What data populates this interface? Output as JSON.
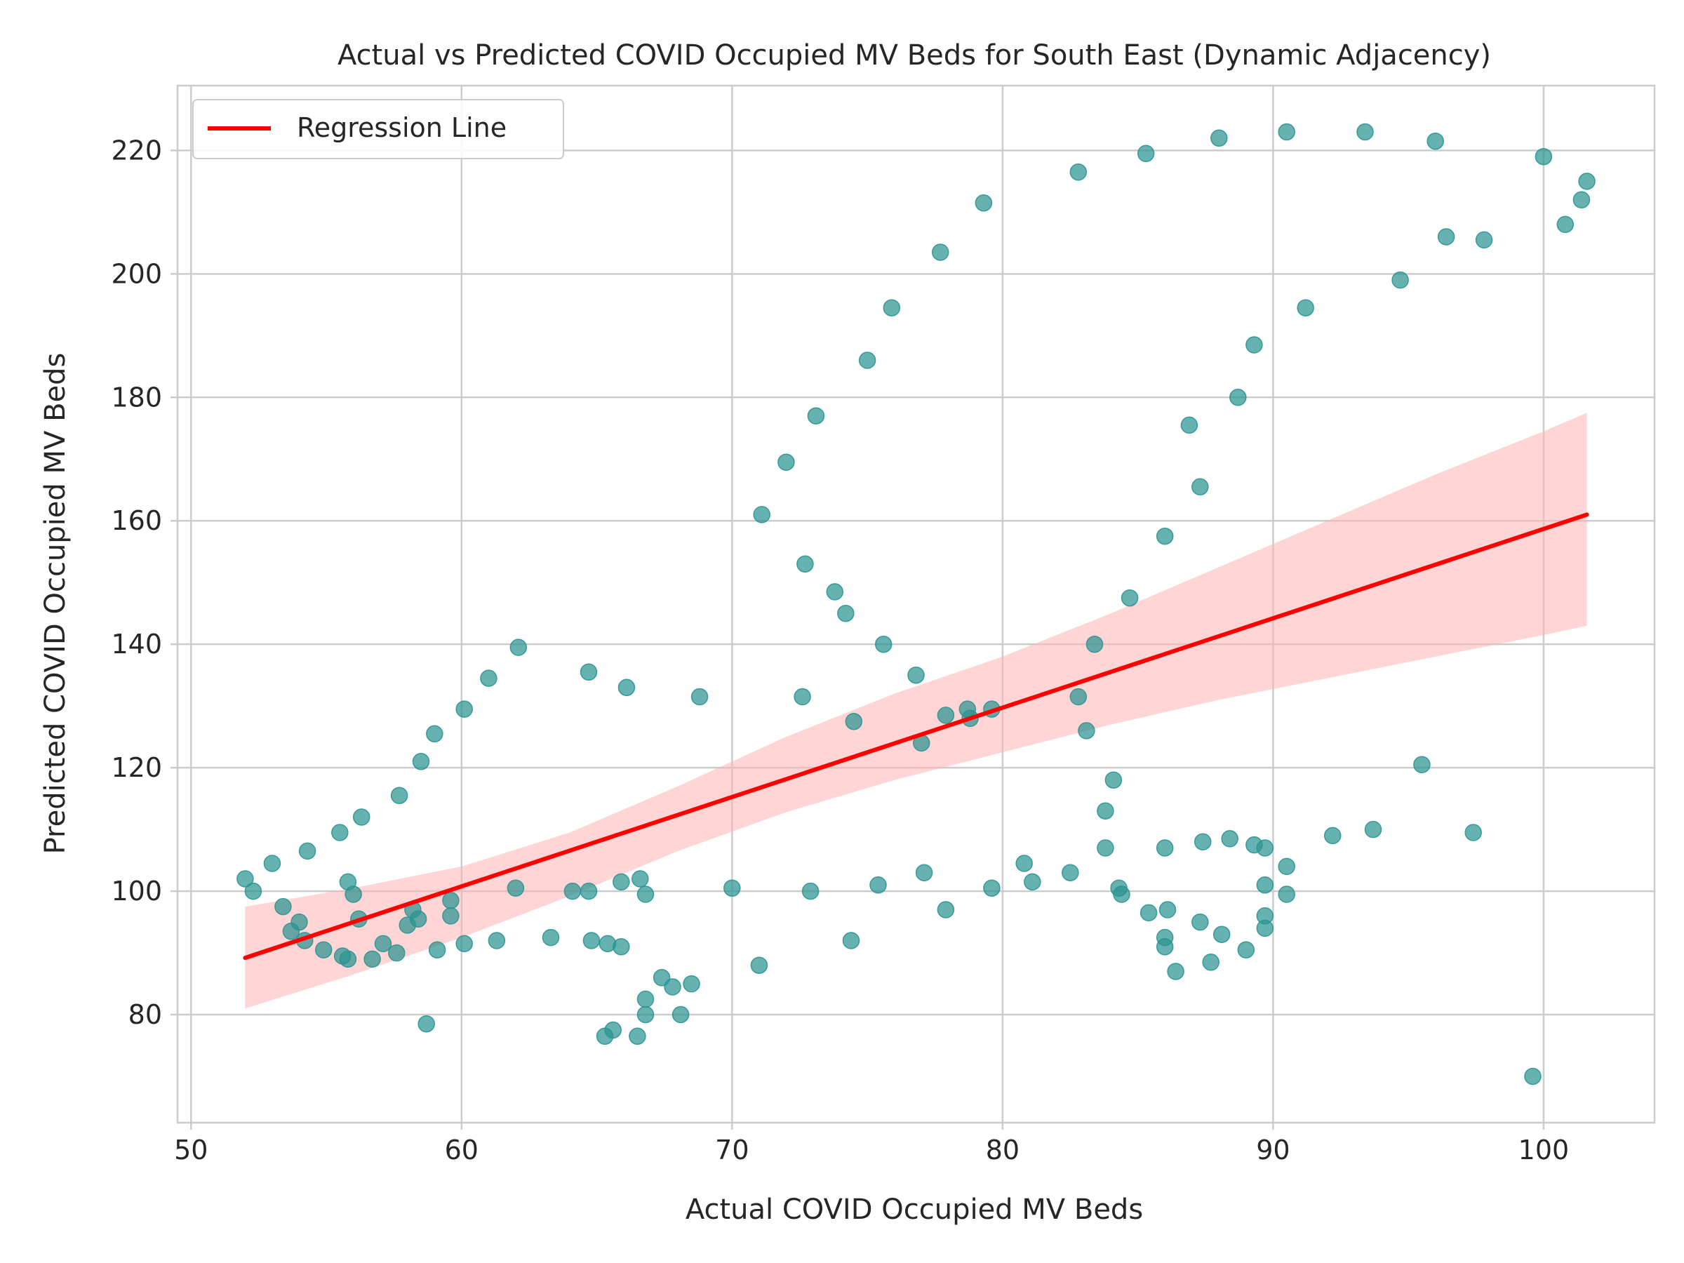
{
  "chart_data": {
    "type": "scatter",
    "title": "Actual vs Predicted COVID Occupied MV Beds for South East (Dynamic Adjacency)",
    "xlabel": "Actual COVID Occupied MV Beds",
    "ylabel": "Predicted COVID Occupied MV Beds",
    "xlim": [
      49.5,
      104.1
    ],
    "ylim": [
      62.5,
      230.5
    ],
    "xticks": [
      50,
      60,
      70,
      80,
      90,
      100
    ],
    "yticks": [
      80,
      100,
      120,
      140,
      160,
      180,
      200,
      220
    ],
    "grid": true,
    "legend": {
      "position": "top-left",
      "entries": [
        {
          "label": "Regression Line",
          "color": "#ff0000"
        }
      ]
    },
    "colors": {
      "points": "#2a9492",
      "regression": "#ff0000",
      "ci_band": "#ffb3b3"
    },
    "points": [
      [
        52,
        102
      ],
      [
        52.3,
        100
      ],
      [
        53,
        104.5
      ],
      [
        53.4,
        97.5
      ],
      [
        53.7,
        93.5
      ],
      [
        54,
        95
      ],
      [
        54.2,
        92
      ],
      [
        54.3,
        106.5
      ],
      [
        54.9,
        90.5
      ],
      [
        55.5,
        109.5
      ],
      [
        55.6,
        89.5
      ],
      [
        55.8,
        101.5
      ],
      [
        55.8,
        89
      ],
      [
        56,
        99.5
      ],
      [
        56.2,
        95.5
      ],
      [
        56.3,
        112
      ],
      [
        56.7,
        89
      ],
      [
        57.1,
        91.5
      ],
      [
        57.6,
        90
      ],
      [
        57.7,
        115.5
      ],
      [
        58,
        94.5
      ],
      [
        58.2,
        97
      ],
      [
        58.4,
        95.5
      ],
      [
        58.5,
        121
      ],
      [
        58.7,
        78.5
      ],
      [
        59,
        125.5
      ],
      [
        59.1,
        90.5
      ],
      [
        59.6,
        98.5
      ],
      [
        59.6,
        96
      ],
      [
        60.1,
        129.5
      ],
      [
        60.1,
        91.5
      ],
      [
        61,
        134.5
      ],
      [
        61.3,
        92
      ],
      [
        62,
        100.5
      ],
      [
        62.1,
        139.5
      ],
      [
        63.3,
        92.5
      ],
      [
        64.1,
        100
      ],
      [
        64.7,
        135.5
      ],
      [
        64.7,
        100
      ],
      [
        64.8,
        92
      ],
      [
        65.3,
        76.5
      ],
      [
        65.4,
        91.5
      ],
      [
        65.6,
        77.5
      ],
      [
        65.9,
        101.5
      ],
      [
        65.9,
        91
      ],
      [
        66.1,
        133
      ],
      [
        66.5,
        76.5
      ],
      [
        66.6,
        102
      ],
      [
        66.8,
        99.5
      ],
      [
        66.8,
        82.5
      ],
      [
        66.8,
        80
      ],
      [
        67.4,
        86
      ],
      [
        67.8,
        84.5
      ],
      [
        68.1,
        80
      ],
      [
        68.5,
        85
      ],
      [
        68.8,
        131.5
      ],
      [
        70,
        100.5
      ],
      [
        71,
        88
      ],
      [
        71.1,
        161
      ],
      [
        72,
        169.5
      ],
      [
        72.6,
        131.5
      ],
      [
        72.7,
        153
      ],
      [
        72.9,
        100
      ],
      [
        73.1,
        177
      ],
      [
        73.8,
        148.5
      ],
      [
        74.2,
        145
      ],
      [
        74.4,
        92
      ],
      [
        74.5,
        127.5
      ],
      [
        75,
        186
      ],
      [
        75.4,
        101
      ],
      [
        75.6,
        140
      ],
      [
        75.9,
        194.5
      ],
      [
        76.8,
        135
      ],
      [
        77,
        124
      ],
      [
        77.1,
        103
      ],
      [
        77.7,
        203.5
      ],
      [
        77.9,
        97
      ],
      [
        77.9,
        128.5
      ],
      [
        78.7,
        129.5
      ],
      [
        78.8,
        128
      ],
      [
        79.3,
        211.5
      ],
      [
        79.6,
        100.5
      ],
      [
        79.6,
        129.5
      ],
      [
        80.8,
        104.5
      ],
      [
        81.1,
        101.5
      ],
      [
        82.5,
        103
      ],
      [
        82.8,
        216.5
      ],
      [
        82.8,
        131.5
      ],
      [
        83.1,
        126
      ],
      [
        83.4,
        140
      ],
      [
        83.8,
        113
      ],
      [
        83.8,
        107
      ],
      [
        84.1,
        118
      ],
      [
        84.3,
        100.5
      ],
      [
        84.4,
        99.5
      ],
      [
        84.7,
        147.5
      ],
      [
        85.3,
        219.5
      ],
      [
        85.4,
        96.5
      ],
      [
        86,
        157.5
      ],
      [
        86,
        107
      ],
      [
        86,
        92.5
      ],
      [
        86,
        91
      ],
      [
        86.1,
        97
      ],
      [
        86.4,
        87
      ],
      [
        86.9,
        175.5
      ],
      [
        87.3,
        165.5
      ],
      [
        87.3,
        95
      ],
      [
        87.4,
        108
      ],
      [
        87.7,
        88.5
      ],
      [
        88,
        222
      ],
      [
        88.1,
        93
      ],
      [
        88.4,
        108.5
      ],
      [
        88.7,
        180
      ],
      [
        89,
        90.5
      ],
      [
        89.3,
        188.5
      ],
      [
        89.3,
        107.5
      ],
      [
        89.7,
        107
      ],
      [
        89.7,
        101
      ],
      [
        89.7,
        96
      ],
      [
        89.7,
        94
      ],
      [
        90.5,
        223
      ],
      [
        90.5,
        104
      ],
      [
        90.5,
        99.5
      ],
      [
        91.2,
        194.5
      ],
      [
        92.2,
        109
      ],
      [
        93.4,
        223
      ],
      [
        93.7,
        110
      ],
      [
        94.7,
        199
      ],
      [
        95.5,
        120.5
      ],
      [
        96,
        221.5
      ],
      [
        96.4,
        206
      ],
      [
        97.4,
        109.5
      ],
      [
        97.8,
        205.5
      ],
      [
        99.6,
        70
      ],
      [
        100,
        219
      ],
      [
        100.8,
        208
      ],
      [
        101.4,
        212
      ],
      [
        101.6,
        215
      ]
    ],
    "regression": {
      "x": [
        52,
        101.6
      ],
      "y": [
        89.2,
        161
      ]
    },
    "ci_band": {
      "x": [
        52,
        56,
        60,
        64,
        68,
        72,
        76,
        80,
        84,
        88,
        92,
        96,
        100,
        101.6
      ],
      "lower": [
        81,
        86.5,
        92.5,
        99.2,
        106.5,
        112.8,
        118,
        122.5,
        127,
        131,
        134.5,
        138,
        141.5,
        143
      ],
      "upper": [
        97.5,
        100.5,
        104,
        109.5,
        117,
        125,
        132,
        138,
        145,
        152.5,
        160,
        167.5,
        174.5,
        177.5
      ]
    }
  }
}
